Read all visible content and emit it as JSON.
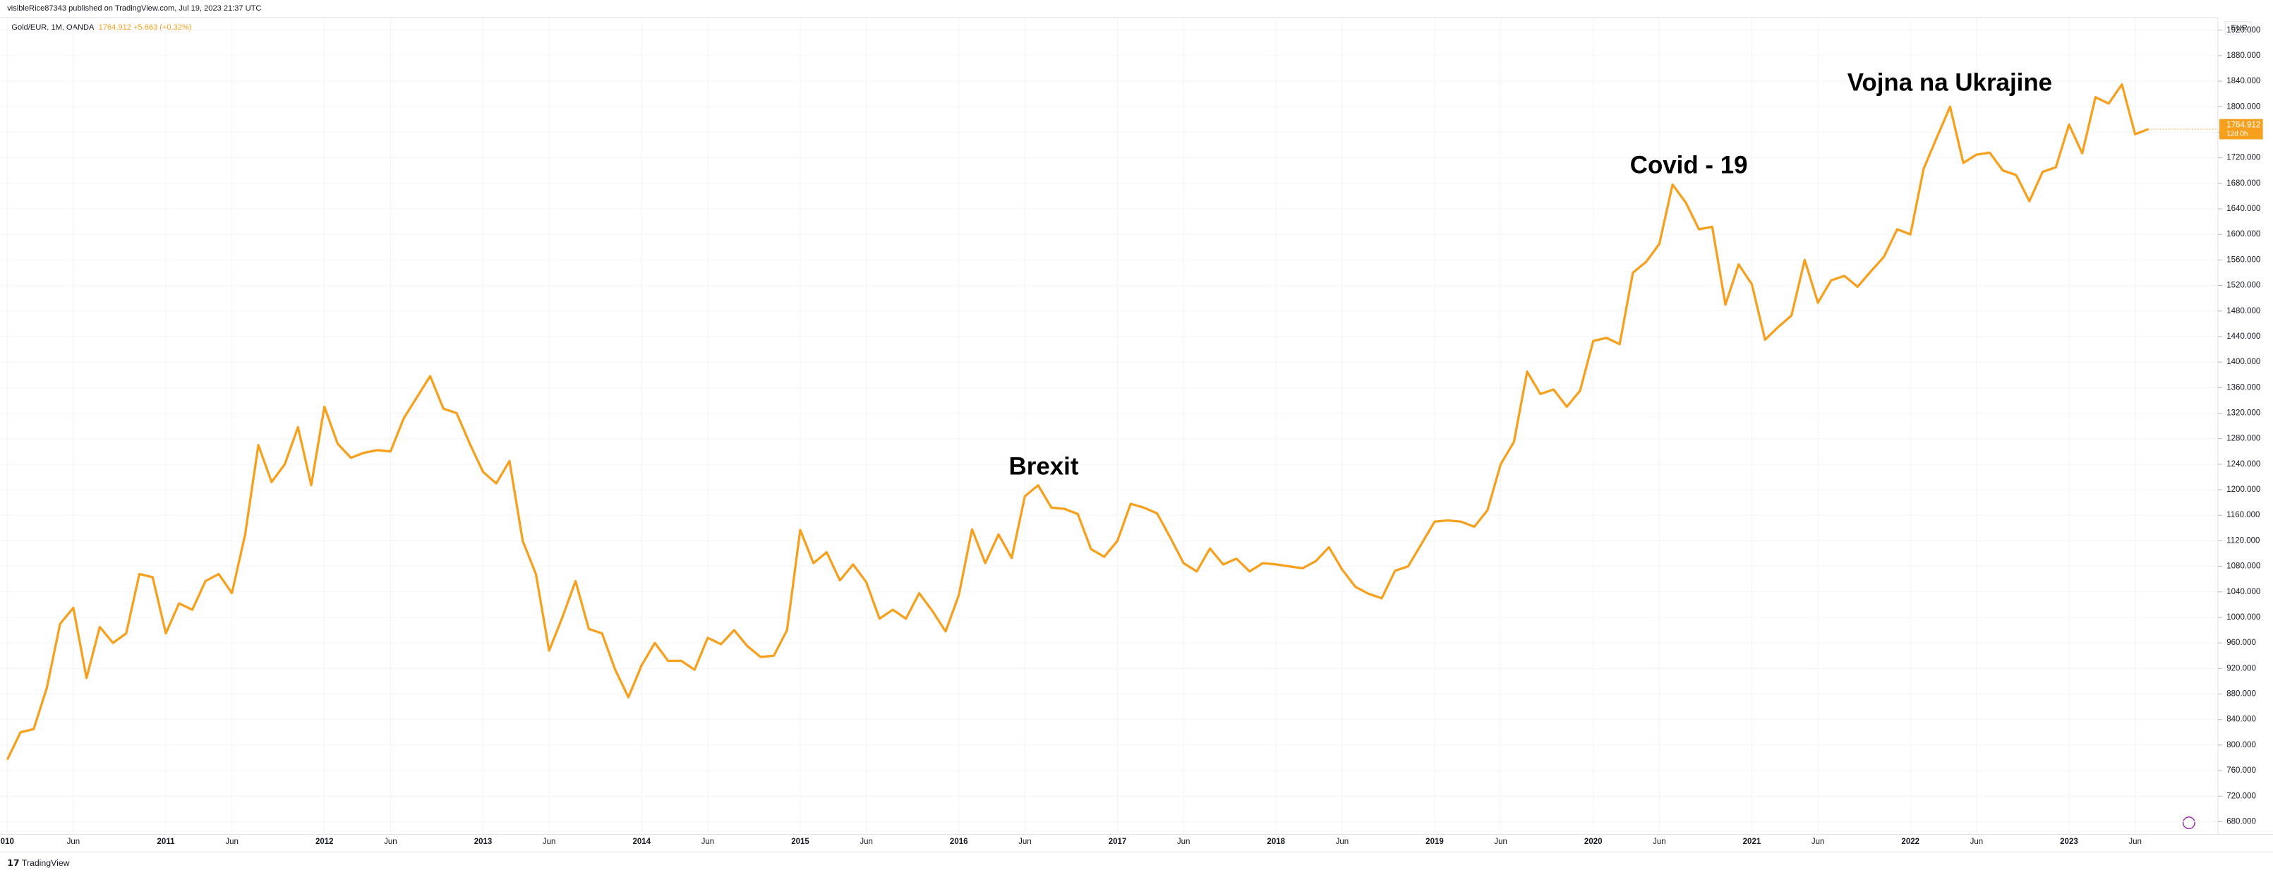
{
  "header": {
    "publisher": "visibleRice87343 published on TradingView.com, Jul 19, 2023 21:37 UTC"
  },
  "chart_data": {
    "type": "line",
    "title": "Gold/EUR, 1M, OANDA",
    "legend_value": "1764.912 +5.663 (+0.32%)",
    "currency": "EUR",
    "countdown": "12d 0h",
    "color": "#f7a01e",
    "grid": true,
    "x": [
      "2010-01",
      "2010-02",
      "2010-03",
      "2010-04",
      "2010-05",
      "2010-06",
      "2010-07",
      "2010-08",
      "2010-09",
      "2010-10",
      "2010-11",
      "2010-12",
      "2011-01",
      "2011-02",
      "2011-03",
      "2011-04",
      "2011-05",
      "2011-06",
      "2011-07",
      "2011-08",
      "2011-09",
      "2011-10",
      "2011-11",
      "2011-12",
      "2012-01",
      "2012-02",
      "2012-03",
      "2012-04",
      "2012-05",
      "2012-06",
      "2012-07",
      "2012-08",
      "2012-09",
      "2012-10",
      "2012-11",
      "2012-12",
      "2013-01",
      "2013-02",
      "2013-03",
      "2013-04",
      "2013-05",
      "2013-06",
      "2013-07",
      "2013-08",
      "2013-09",
      "2013-10",
      "2013-11",
      "2013-12",
      "2014-01",
      "2014-02",
      "2014-03",
      "2014-04",
      "2014-05",
      "2014-06",
      "2014-07",
      "2014-08",
      "2014-09",
      "2014-10",
      "2014-11",
      "2014-12",
      "2015-01",
      "2015-02",
      "2015-03",
      "2015-04",
      "2015-05",
      "2015-06",
      "2015-07",
      "2015-08",
      "2015-09",
      "2015-10",
      "2015-11",
      "2015-12",
      "2016-01",
      "2016-02",
      "2016-03",
      "2016-04",
      "2016-05",
      "2016-06",
      "2016-07",
      "2016-08",
      "2016-09",
      "2016-10",
      "2016-11",
      "2016-12",
      "2017-01",
      "2017-02",
      "2017-03",
      "2017-04",
      "2017-05",
      "2017-06",
      "2017-07",
      "2017-08",
      "2017-09",
      "2017-10",
      "2017-11",
      "2017-12",
      "2018-01",
      "2018-02",
      "2018-03",
      "2018-04",
      "2018-05",
      "2018-06",
      "2018-07",
      "2018-08",
      "2018-09",
      "2018-10",
      "2018-11",
      "2018-12",
      "2019-01",
      "2019-02",
      "2019-03",
      "2019-04",
      "2019-05",
      "2019-06",
      "2019-07",
      "2019-08",
      "2019-09",
      "2019-10",
      "2019-11",
      "2019-12",
      "2020-01",
      "2020-02",
      "2020-03",
      "2020-04",
      "2020-05",
      "2020-06",
      "2020-07",
      "2020-08",
      "2020-09",
      "2020-10",
      "2020-11",
      "2020-12",
      "2021-01",
      "2021-02",
      "2021-03",
      "2021-04",
      "2021-05",
      "2021-06",
      "2021-07",
      "2021-08",
      "2021-09",
      "2021-10",
      "2021-11",
      "2021-12",
      "2022-01",
      "2022-02",
      "2022-03",
      "2022-04",
      "2022-05",
      "2022-06",
      "2022-07",
      "2022-08",
      "2022-09",
      "2022-10",
      "2022-11",
      "2022-12",
      "2023-01",
      "2023-02",
      "2023-03",
      "2023-04",
      "2023-05",
      "2023-06",
      "2023-07"
    ],
    "values": [
      777,
      820,
      825,
      890,
      990,
      1015,
      905,
      985,
      960,
      975,
      1068,
      1063,
      975,
      1022,
      1012,
      1057,
      1068,
      1038,
      1130,
      1270,
      1212,
      1240,
      1298,
      1207,
      1330,
      1272,
      1250,
      1258,
      1262,
      1260,
      1312,
      1345,
      1378,
      1327,
      1320,
      1272,
      1228,
      1210,
      1245,
      1120,
      1068,
      948,
      1000,
      1057,
      982,
      975,
      918,
      875,
      925,
      960,
      932,
      932,
      918,
      968,
      958,
      980,
      955,
      938,
      940,
      980,
      1137,
      1085,
      1102,
      1058,
      1083,
      1055,
      998,
      1012,
      998,
      1038,
      1010,
      978,
      1035,
      1138,
      1085,
      1130,
      1093,
      1190,
      1207,
      1172,
      1170,
      1162,
      1107,
      1095,
      1120,
      1178,
      1172,
      1163,
      1125,
      1085,
      1072,
      1108,
      1083,
      1092,
      1072,
      1085,
      1083,
      1080,
      1077,
      1088,
      1110,
      1075,
      1048,
      1037,
      1030,
      1073,
      1080,
      1115,
      1150,
      1152,
      1150,
      1142,
      1168,
      1240,
      1275,
      1385,
      1350,
      1357,
      1330,
      1355,
      1433,
      1438,
      1428,
      1540,
      1557,
      1585,
      1678,
      1650,
      1608,
      1612,
      1490,
      1553,
      1522,
      1435,
      1455,
      1473,
      1560,
      1493,
      1528,
      1535,
      1518,
      1542,
      1565,
      1608,
      1600,
      1703,
      1752,
      1800,
      1712,
      1725,
      1728,
      1700,
      1693,
      1652,
      1698,
      1705,
      1772,
      1727,
      1815,
      1805,
      1835,
      1757,
      1764.912
    ],
    "ylim": [
      660,
      1940
    ],
    "yticks": [
      {
        "value": 680,
        "label": "680.000"
      },
      {
        "value": 720,
        "label": "720.000"
      },
      {
        "value": 760,
        "label": "760.000"
      },
      {
        "value": 800,
        "label": "800.000"
      },
      {
        "value": 840,
        "label": "840.000"
      },
      {
        "value": 880,
        "label": "880.000"
      },
      {
        "value": 920,
        "label": "920.000"
      },
      {
        "value": 960,
        "label": "960.000"
      },
      {
        "value": 1000,
        "label": "1000.000"
      },
      {
        "value": 1040,
        "label": "1040.000"
      },
      {
        "value": 1080,
        "label": "1080.000"
      },
      {
        "value": 1120,
        "label": "1120.000"
      },
      {
        "value": 1160,
        "label": "1160.000"
      },
      {
        "value": 1200,
        "label": "1200.000"
      },
      {
        "value": 1240,
        "label": "1240.000"
      },
      {
        "value": 1280,
        "label": "1280.000"
      },
      {
        "value": 1320,
        "label": "1320.000"
      },
      {
        "value": 1360,
        "label": "1360.000"
      },
      {
        "value": 1400,
        "label": "1400.000"
      },
      {
        "value": 1440,
        "label": "1440.000"
      },
      {
        "value": 1480,
        "label": "1480.000"
      },
      {
        "value": 1520,
        "label": "1520.000"
      },
      {
        "value": 1560,
        "label": "1560.000"
      },
      {
        "value": 1600,
        "label": "1600.000"
      },
      {
        "value": 1640,
        "label": "1640.000"
      },
      {
        "value": 1680,
        "label": "1680.000"
      },
      {
        "value": 1720,
        "label": "1720.000"
      },
      {
        "value": 1760,
        "label": "1760.000"
      },
      {
        "value": 1800,
        "label": "1800.000"
      },
      {
        "value": 1840,
        "label": "1840.000"
      },
      {
        "value": 1880,
        "label": "1880.000"
      },
      {
        "value": 1920,
        "label": "1920.000"
      }
    ],
    "xticks": [
      {
        "value": "2010-01",
        "label": "010"
      },
      {
        "value": "2010-06",
        "label": "Jun"
      },
      {
        "value": "2011-01",
        "label": "2011"
      },
      {
        "value": "2011-06",
        "label": "Jun"
      },
      {
        "value": "2012-01",
        "label": "2012"
      },
      {
        "value": "2012-06",
        "label": "Jun"
      },
      {
        "value": "2013-01",
        "label": "2013"
      },
      {
        "value": "2013-06",
        "label": "Jun"
      },
      {
        "value": "2014-01",
        "label": "2014"
      },
      {
        "value": "2014-06",
        "label": "Jun"
      },
      {
        "value": "2015-01",
        "label": "2015"
      },
      {
        "value": "2015-06",
        "label": "Jun"
      },
      {
        "value": "2016-01",
        "label": "2016"
      },
      {
        "value": "2016-06",
        "label": "Jun"
      },
      {
        "value": "2017-01",
        "label": "2017"
      },
      {
        "value": "2017-06",
        "label": "Jun"
      },
      {
        "value": "2018-01",
        "label": "2018"
      },
      {
        "value": "2018-06",
        "label": "Jun"
      },
      {
        "value": "2019-01",
        "label": "2019"
      },
      {
        "value": "2019-06",
        "label": "Jun"
      },
      {
        "value": "2020-01",
        "label": "2020"
      },
      {
        "value": "2020-06",
        "label": "Jun"
      },
      {
        "value": "2021-01",
        "label": "2021"
      },
      {
        "value": "2021-06",
        "label": "Jun"
      },
      {
        "value": "2022-01",
        "label": "2022"
      },
      {
        "value": "2022-06",
        "label": "Jun"
      },
      {
        "value": "2023-01",
        "label": "2023"
      },
      {
        "value": "2023-06",
        "label": "Jun"
      }
    ],
    "annotations": [
      {
        "text": "Brexit"
      },
      {
        "text": "Covid - 19"
      },
      {
        "text": "Vojna na Ukrajine"
      }
    ]
  },
  "footer": {
    "brand": "TradingView"
  }
}
